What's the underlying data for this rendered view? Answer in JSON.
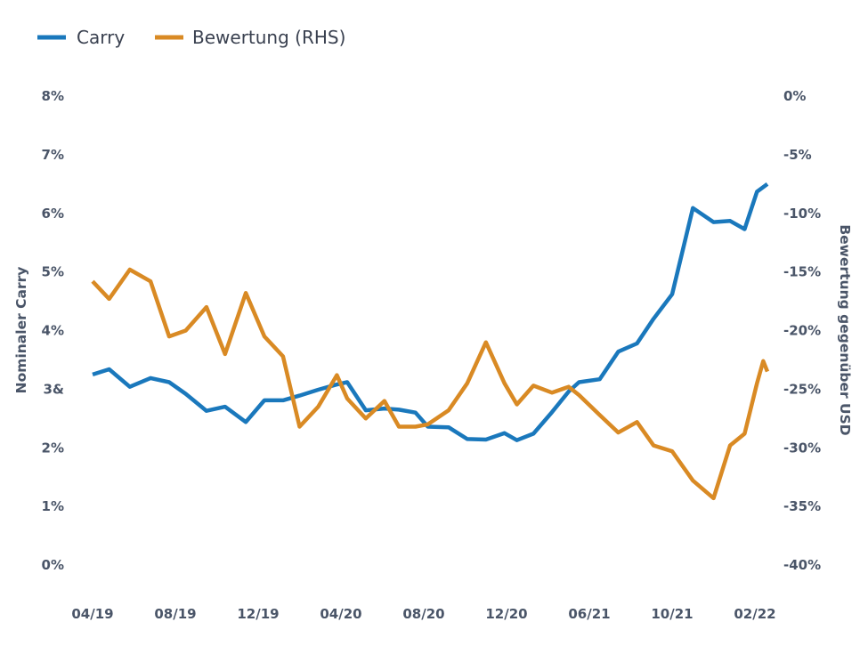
{
  "chart_data": {
    "type": "line",
    "title": "",
    "legend": [
      {
        "name": "Carry",
        "color": "#1a78bc"
      },
      {
        "name": "Bewertung (RHS)",
        "color": "#d98a24"
      }
    ],
    "ylabel": "Nominaler Carry",
    "y2label": "Bewertung gegenüber USD",
    "ylim": [
      0,
      8
    ],
    "y2lim": [
      -40,
      0
    ],
    "y_ticks": [
      {
        "value": 0,
        "label": "0%"
      },
      {
        "value": 1,
        "label": "1%"
      },
      {
        "value": 2,
        "label": "2%"
      },
      {
        "value": 3,
        "label": "3&"
      },
      {
        "value": 4,
        "label": "4%"
      },
      {
        "value": 5,
        "label": "5%"
      },
      {
        "value": 6,
        "label": "6%"
      },
      {
        "value": 7,
        "label": "7%"
      },
      {
        "value": 8,
        "label": "8%"
      }
    ],
    "y2_ticks": [
      {
        "value": -40,
        "label": "-40%"
      },
      {
        "value": -35,
        "label": "-35%"
      },
      {
        "value": -30,
        "label": "-30%"
      },
      {
        "value": -25,
        "label": "-25%"
      },
      {
        "value": -20,
        "label": "-20%"
      },
      {
        "value": -15,
        "label": "-15%"
      },
      {
        "value": -10,
        "label": "-10%"
      },
      {
        "value": -5,
        "label": "-5%"
      },
      {
        "value": 0,
        "label": "0%"
      }
    ],
    "x_ticks": [
      {
        "index": 0,
        "label": "04/19"
      },
      {
        "index": 4,
        "label": "08/19"
      },
      {
        "index": 8,
        "label": "12/19"
      },
      {
        "index": 12,
        "label": "04/20"
      },
      {
        "index": 16,
        "label": "08/20"
      },
      {
        "index": 20,
        "label": "12/20"
      },
      {
        "index": 24,
        "label": "06/21"
      },
      {
        "index": 28,
        "label": "10/21"
      },
      {
        "index": 32,
        "label": "02/22"
      }
    ],
    "x_count": 33,
    "series": [
      {
        "name": "Carry",
        "axis": "left",
        "color": "#1a78bc",
        "points": [
          [
            0,
            3.25
          ],
          [
            0.8,
            3.34
          ],
          [
            1.8,
            3.04
          ],
          [
            2.8,
            3.19
          ],
          [
            3.7,
            3.12
          ],
          [
            4.5,
            2.92
          ],
          [
            5.5,
            2.63
          ],
          [
            6.4,
            2.7
          ],
          [
            7.4,
            2.44
          ],
          [
            8.3,
            2.81
          ],
          [
            9.2,
            2.81
          ],
          [
            10.0,
            2.89
          ],
          [
            10.9,
            2.99
          ],
          [
            11.8,
            3.08
          ],
          [
            12.3,
            3.12
          ],
          [
            13.2,
            2.64
          ],
          [
            14.1,
            2.67
          ],
          [
            14.8,
            2.65
          ],
          [
            15.6,
            2.6
          ],
          [
            16.2,
            2.36
          ],
          [
            17.2,
            2.35
          ],
          [
            18.1,
            2.15
          ],
          [
            19.0,
            2.14
          ],
          [
            19.9,
            2.25
          ],
          [
            20.5,
            2.13
          ],
          [
            21.3,
            2.24
          ],
          [
            22.2,
            2.61
          ],
          [
            23.0,
            2.96
          ],
          [
            23.5,
            3.12
          ],
          [
            24.5,
            3.17
          ],
          [
            25.4,
            3.64
          ],
          [
            26.3,
            3.78
          ],
          [
            27.1,
            4.2
          ],
          [
            28.0,
            4.62
          ],
          [
            29.0,
            6.09
          ],
          [
            30.0,
            5.85
          ],
          [
            30.8,
            5.87
          ],
          [
            31.5,
            5.73
          ],
          [
            32.1,
            6.37
          ],
          [
            32.6,
            6.5
          ]
        ]
      },
      {
        "name": "Bewertung (RHS)",
        "axis": "right",
        "color": "#d98a24",
        "points": [
          [
            0,
            -15.8
          ],
          [
            0.8,
            -17.3
          ],
          [
            1.8,
            -14.8
          ],
          [
            2.8,
            -15.8
          ],
          [
            3.7,
            -20.5
          ],
          [
            4.5,
            -20.0
          ],
          [
            5.5,
            -18.0
          ],
          [
            6.4,
            -22.0
          ],
          [
            7.4,
            -16.8
          ],
          [
            8.3,
            -20.5
          ],
          [
            9.2,
            -22.2
          ],
          [
            10.0,
            -28.2
          ],
          [
            10.9,
            -26.5
          ],
          [
            11.8,
            -23.8
          ],
          [
            12.3,
            -25.8
          ],
          [
            13.2,
            -27.5
          ],
          [
            14.1,
            -26.0
          ],
          [
            14.8,
            -28.2
          ],
          [
            15.6,
            -28.2
          ],
          [
            16.2,
            -28.0
          ],
          [
            17.2,
            -26.8
          ],
          [
            18.1,
            -24.5
          ],
          [
            19.0,
            -21.0
          ],
          [
            19.9,
            -24.5
          ],
          [
            20.5,
            -26.3
          ],
          [
            21.3,
            -24.7
          ],
          [
            22.2,
            -25.3
          ],
          [
            23.0,
            -24.8
          ],
          [
            23.5,
            -25.5
          ],
          [
            24.5,
            -27.2
          ],
          [
            25.4,
            -28.7
          ],
          [
            26.3,
            -27.8
          ],
          [
            27.1,
            -29.8
          ],
          [
            28.0,
            -30.3
          ],
          [
            29.0,
            -32.8
          ],
          [
            30.0,
            -34.3
          ],
          [
            30.8,
            -29.8
          ],
          [
            31.5,
            -28.8
          ],
          [
            32.1,
            -24.5
          ],
          [
            32.4,
            -22.6
          ],
          [
            32.6,
            -23.5
          ]
        ]
      }
    ]
  }
}
